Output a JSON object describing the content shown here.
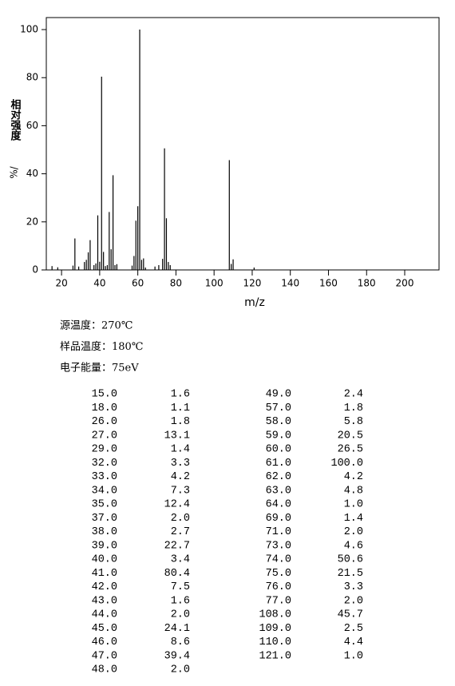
{
  "chart_data": {
    "type": "spectrum",
    "x_label": "m/z",
    "y_label": "相对强度",
    "y_unit": "%/",
    "x": [
      15,
      18,
      26,
      27,
      29,
      32,
      33,
      34,
      35,
      37,
      38,
      39,
      40,
      41,
      42,
      43,
      44,
      45,
      46,
      47,
      48,
      49,
      57,
      58,
      59,
      60,
      61,
      62,
      63,
      64,
      69,
      71,
      73,
      74,
      75,
      76,
      77,
      108,
      109,
      110,
      121
    ],
    "values": [
      1.6,
      1.1,
      1.8,
      13.1,
      1.4,
      3.3,
      4.2,
      7.3,
      12.4,
      2,
      2.7,
      22.7,
      3.4,
      80.4,
      7.5,
      1.6,
      2,
      24.1,
      8.6,
      39.4,
      2,
      2.4,
      1.8,
      5.8,
      20.5,
      26.5,
      100,
      4.2,
      4.8,
      1,
      1.4,
      2,
      4.6,
      50.6,
      21.5,
      3.3,
      2,
      45.7,
      2.5,
      4.4,
      1
    ],
    "x_labels": [
      "15.0",
      "18.0",
      "26.0",
      "27.0",
      "29.0",
      "32.0",
      "33.0",
      "34.0",
      "35.0",
      "37.0",
      "38.0",
      "39.0",
      "40.0",
      "41.0",
      "42.0",
      "43.0",
      "44.0",
      "45.0",
      "46.0",
      "47.0",
      "48.0",
      "49.0",
      "57.0",
      "58.0",
      "59.0",
      "60.0",
      "61.0",
      "62.0",
      "63.0",
      "64.0",
      "69.0",
      "71.0",
      "73.0",
      "74.0",
      "75.0",
      "76.0",
      "77.0",
      "108.0",
      "109.0",
      "110.0",
      "121.0"
    ],
    "value_labels": [
      "1.6",
      "1.1",
      "1.8",
      "13.1",
      "1.4",
      "3.3",
      "4.2",
      "7.3",
      "12.4",
      "2.0",
      "2.7",
      "22.7",
      "3.4",
      "80.4",
      "7.5",
      "1.6",
      "2.0",
      "24.1",
      "8.6",
      "39.4",
      "2.0",
      "2.4",
      "1.8",
      "5.8",
      "20.5",
      "26.5",
      "100.0",
      "4.2",
      "4.8",
      "1.0",
      "1.4",
      "2.0",
      "4.6",
      "50.6",
      "21.5",
      "3.3",
      "2.0",
      "45.7",
      "2.5",
      "4.4",
      "1.0"
    ],
    "color": "#000000",
    "xlim": [
      12,
      218
    ],
    "xticks": [
      20,
      40,
      60,
      80,
      100,
      120,
      140,
      160,
      180,
      200
    ],
    "ylim": [
      0,
      105
    ],
    "yticks": [
      0,
      20,
      40,
      60,
      80,
      100
    ],
    "conditions": [
      "源温度：270℃",
      "样品温度：180℃",
      "电子能量：75eV"
    ]
  }
}
